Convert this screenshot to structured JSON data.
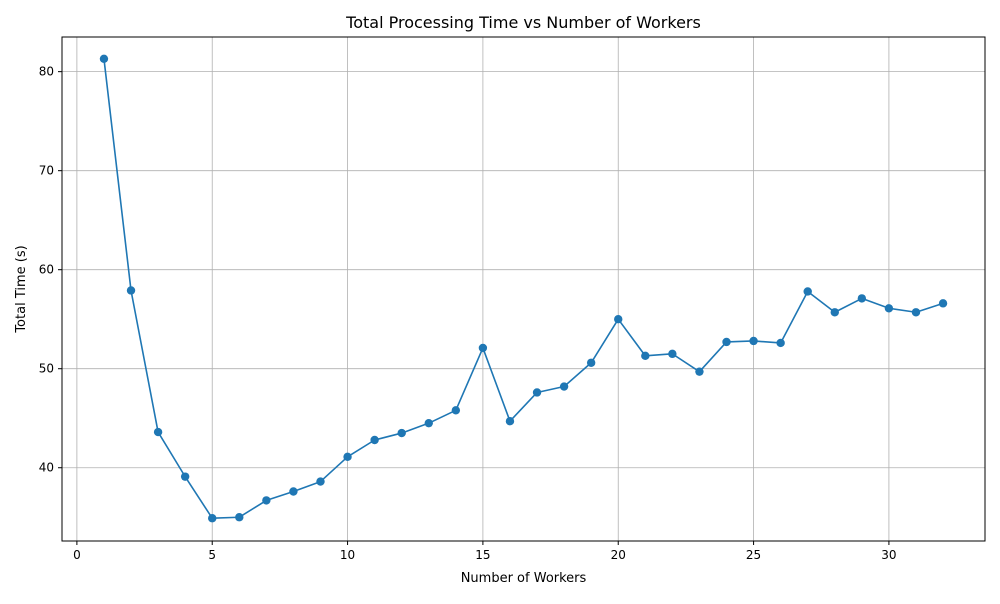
{
  "chart_data": {
    "type": "line",
    "title": "Total Processing Time vs Number of Workers",
    "xlabel": "Number of Workers",
    "ylabel": "Total Time (s)",
    "xlim": [
      -0.55,
      33.55
    ],
    "ylim": [
      32.6,
      83.5
    ],
    "xticks": [
      0,
      5,
      10,
      15,
      20,
      25,
      30
    ],
    "yticks": [
      40,
      50,
      60,
      70,
      80
    ],
    "grid": true,
    "series": [
      {
        "color": "#1f77b4",
        "marker": "circle",
        "x": [
          1,
          2,
          3,
          4,
          5,
          6,
          7,
          8,
          9,
          10,
          11,
          12,
          13,
          14,
          15,
          16,
          17,
          18,
          19,
          20,
          21,
          22,
          23,
          24,
          25,
          26,
          27,
          28,
          29,
          30,
          31,
          32
        ],
        "y": [
          81.3,
          57.9,
          43.6,
          39.1,
          34.9,
          35.0,
          36.7,
          37.6,
          38.6,
          41.1,
          42.8,
          43.5,
          44.5,
          45.8,
          52.1,
          44.7,
          47.6,
          48.2,
          50.6,
          55.0,
          51.3,
          51.5,
          49.7,
          52.7,
          52.8,
          52.6,
          57.8,
          55.7,
          57.1,
          56.1,
          55.7,
          56.6
        ]
      }
    ]
  }
}
